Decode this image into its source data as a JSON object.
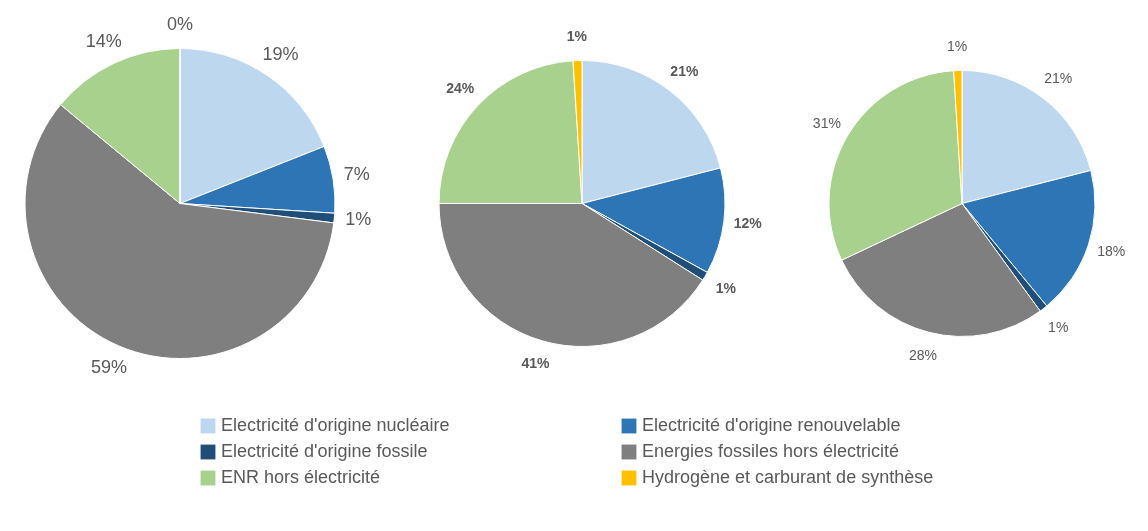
{
  "chart_data": [
    {
      "type": "pie",
      "categories": [
        "Electricité d'origine nucléaire",
        "Electricité d'origine renouvelable",
        "Electricité d'origine fossile",
        "Energies fossiles hors électricité",
        "ENR hors électricité",
        "Hydrogène et carburant de synthèse"
      ],
      "values": [
        19,
        7,
        1,
        59,
        14,
        0
      ],
      "colors": [
        "#bdd7ee",
        "#2e75b6",
        "#1f4e79",
        "#7f7f7f",
        "#a9d18e",
        "#ffc000"
      ],
      "value_labels": [
        "19%",
        "7%",
        "1%",
        "59%",
        "14%",
        "0%"
      ],
      "legend": "bottom"
    },
    {
      "type": "pie",
      "categories": [
        null,
        null,
        null,
        null,
        null,
        null
      ],
      "values": [
        21,
        12,
        1,
        41,
        24,
        1
      ],
      "colors": [
        "#bdd7ee",
        "#2e75b6",
        "#1f4e79",
        "#7f7f7f",
        "#a9d18e",
        "#ffc000"
      ],
      "value_labels": [
        "21%",
        "12%",
        "1%",
        "41%",
        "24%",
        "1%"
      ]
    },
    {
      "type": "pie",
      "categories": [
        null,
        null,
        null,
        null,
        null,
        null
      ],
      "values": [
        21,
        18,
        1,
        28,
        31,
        1
      ],
      "colors": [
        "#bdd7ee",
        "#2e75b6",
        "#1f4e79",
        "#7f7f7f",
        "#a9d18e",
        "#ffc000"
      ],
      "value_labels": [
        "21%",
        "18%",
        "1%",
        "28%",
        "31%",
        "1%"
      ]
    }
  ]
}
